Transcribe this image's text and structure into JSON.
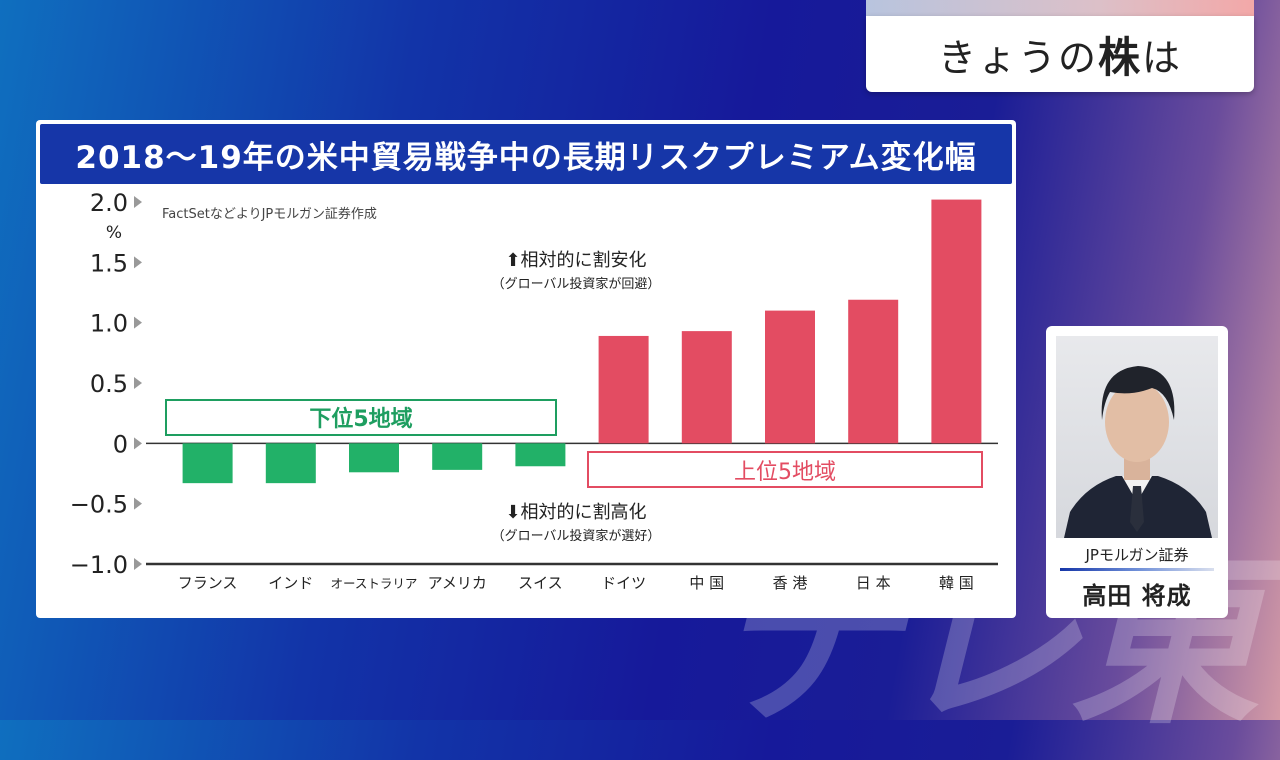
{
  "corner": {
    "prefix": "きょうの",
    "emph": "株",
    "suffix": "は"
  },
  "watermark": "テレ東",
  "chart_data": {
    "type": "bar",
    "title": "2018～19年の米中貿易戦争中の長期リスクプレミアム変化幅",
    "source": "FactSetなどよりJPモルガン証券作成",
    "ylabel": "%",
    "ylim": [
      -1.0,
      2.0
    ],
    "yticks": [
      "2.0",
      "1.5",
      "1.0",
      "0.5",
      "0",
      "−0.5",
      "−1.0"
    ],
    "categories": [
      "フランス",
      "インド",
      "オーストラリア",
      "アメリカ",
      "スイス",
      "ドイツ",
      "中 国",
      "香 港",
      "日 本",
      "韓 国"
    ],
    "values": [
      -0.33,
      -0.33,
      -0.24,
      -0.22,
      -0.19,
      0.89,
      0.93,
      1.1,
      1.19,
      2.02
    ],
    "colors": {
      "negative": "#22b168",
      "positive": "#e34c62"
    },
    "annotations": {
      "up_line1": "⬆相対的に割安化",
      "up_line2": "（グローバル投資家が回避）",
      "down_line1": "⬇相対的に割高化",
      "down_line2": "（グローバル投資家が選好）",
      "bottom_group": "下位5地域",
      "top_group": "上位5地域"
    }
  },
  "person": {
    "company": "JPモルガン証券",
    "name": "高田 将成"
  }
}
